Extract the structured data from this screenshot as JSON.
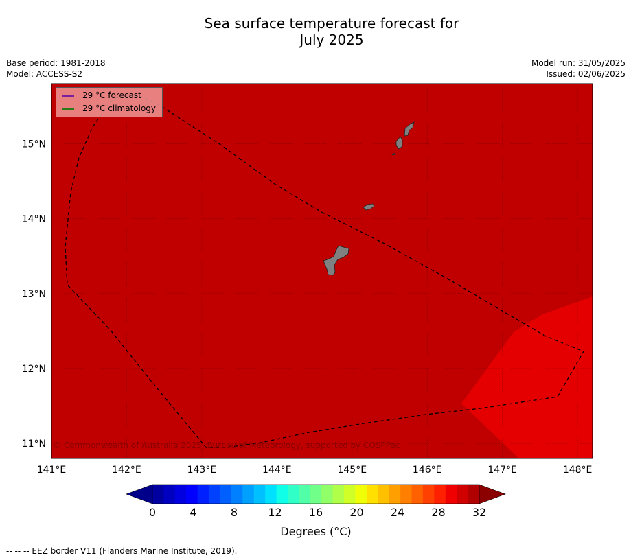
{
  "title_line1": "Sea surface temperature forecast for",
  "title_line2": "July 2025",
  "meta": {
    "base_period": "Base period: 1981-2018",
    "model": "Model: ACCESS-S2",
    "model_run": "Model run: 31/05/2025",
    "issued": "Issued: 02/06/2025"
  },
  "legend": {
    "forecast_label": "29 °C  forecast",
    "forecast_color": "#7a1f9e",
    "climatology_label": "29 °C  climatology",
    "climatology_color": "#2a7a1a"
  },
  "copyright": "© Commonwealth of Australia 2025, Bureau of Meteorology, supported by COSPPac",
  "footer": "-- -- -- EEZ border V11 (Flanders Marine Institute, 2019).",
  "map": {
    "lon_range": [
      141,
      148.2
    ],
    "lat_range": [
      10.8,
      15.8
    ],
    "lon_ticks": [
      "141°E",
      "142°E",
      "143°E",
      "144°E",
      "145°E",
      "146°E",
      "147°E",
      "148°E"
    ],
    "lat_ticks": [
      "11°N",
      "12°N",
      "13°N",
      "14°N",
      "15°N"
    ],
    "background_color": "#c00000",
    "warm_patch_color": "#e40000",
    "land_color": "#808080"
  },
  "colorbar": {
    "tick_labels": [
      "0",
      "4",
      "8",
      "12",
      "16",
      "20",
      "24",
      "28",
      "32"
    ],
    "label": "Degrees (°C)",
    "min": 0,
    "max": 32,
    "under_color": "#00008b",
    "over_color": "#8b0000",
    "colors": [
      "#0000a0",
      "#0000c0",
      "#0000e0",
      "#0000ff",
      "#0020ff",
      "#0040ff",
      "#0060ff",
      "#0080ff",
      "#00a0ff",
      "#00c0ff",
      "#00e0ff",
      "#10ffe8",
      "#30ffc8",
      "#50ffa8",
      "#70ff88",
      "#90ff68",
      "#b0ff48",
      "#d0ff28",
      "#f0ff08",
      "#ffe000",
      "#ffc000",
      "#ffa000",
      "#ff8000",
      "#ff6000",
      "#ff4000",
      "#ff2000",
      "#f00000",
      "#d00000",
      "#b00000"
    ]
  }
}
